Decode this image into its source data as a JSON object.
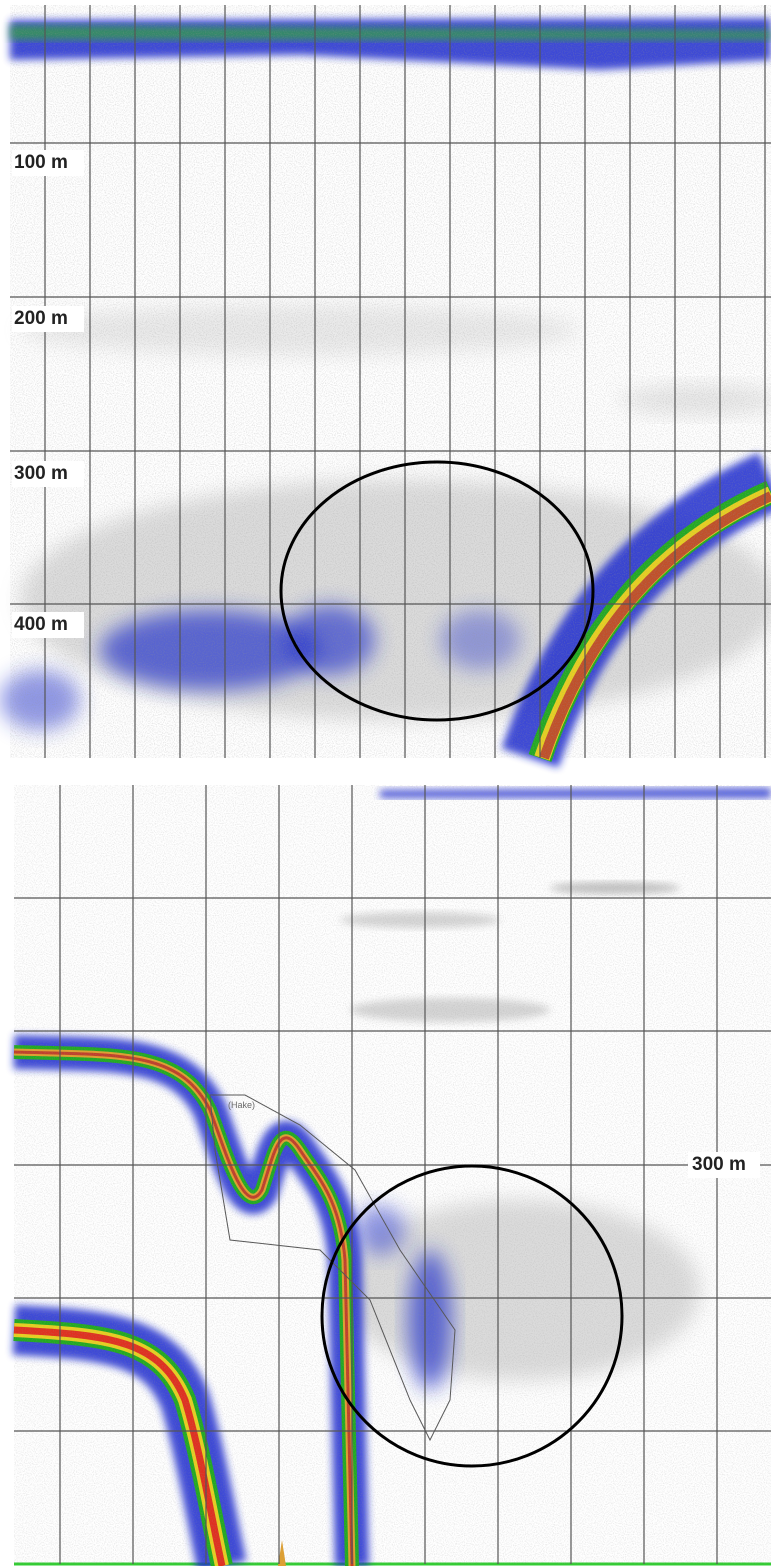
{
  "top_panel": {
    "depth_labels": [
      "100 m",
      "200 m",
      "300 m",
      "400 m"
    ]
  },
  "bottom_panel": {
    "depth_label": "300 m",
    "region_label": "(Hake)"
  }
}
